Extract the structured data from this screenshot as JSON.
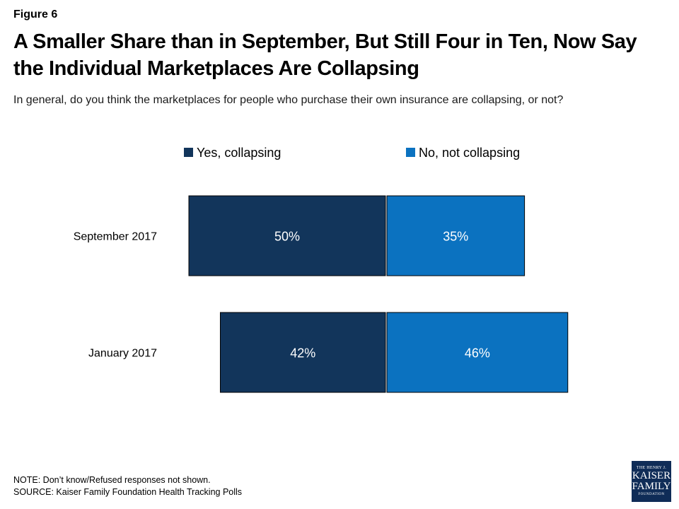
{
  "figure_label": "Figure 6",
  "title": "A Smaller Share than in September, But Still Four in Ten, Now Say the Individual Marketplaces Are Collapsing",
  "subtitle": "In general, do you think the marketplaces for people who purchase their own insurance are collapsing, or not?",
  "note": "NOTE: Don’t know/Refused responses not shown.",
  "source": "SOURCE: Kaiser Family Foundation Health Tracking Polls",
  "logo": {
    "line1": "THE HENRY J.",
    "line2": "KAISER",
    "line3": "FAMILY",
    "line4": "FOUNDATION"
  },
  "chart_data": {
    "type": "bar",
    "orientation": "horizontal",
    "layout": "diverging",
    "categories": [
      "September 2017",
      "January 2017"
    ],
    "series": [
      {
        "name": "Yes, collapsing",
        "values": [
          50,
          42
        ],
        "color": "#12355b"
      },
      {
        "name": "No, not collapsing",
        "values": [
          35,
          46
        ],
        "color": "#0b72c0"
      }
    ],
    "value_suffix": "%",
    "legend_position": "top",
    "grid": false
  }
}
